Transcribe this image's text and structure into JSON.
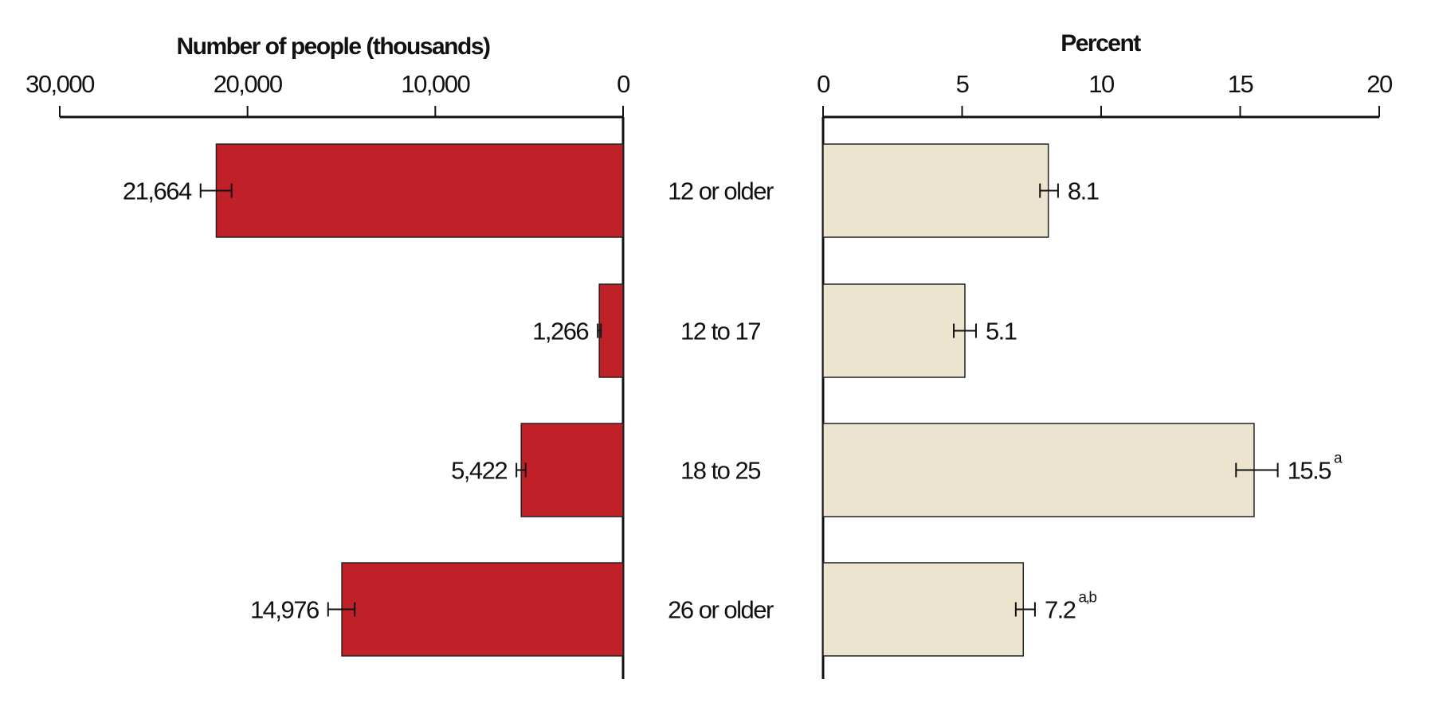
{
  "chart_data": [
    {
      "type": "bar",
      "orientation": "horizontal",
      "direction": "right-to-left",
      "title": "Number of people (thousands)",
      "categories": [
        "12 or older",
        "12 to 17",
        "18 to 25",
        "26 or older"
      ],
      "values": [
        21664,
        1266,
        5422,
        14976
      ],
      "value_labels": [
        "21,664",
        "1,266",
        "5,422",
        "14,976"
      ],
      "error_bars": [
        [
          20850,
          22500
        ],
        [
          1180,
          1350
        ],
        [
          5190,
          5680
        ],
        [
          14290,
          15710
        ]
      ],
      "xlim": [
        0,
        30000
      ],
      "ticks": [
        0,
        10000,
        20000,
        30000
      ],
      "tick_labels": [
        "0",
        "10,000",
        "20,000",
        "30,000"
      ],
      "color": "#c02028",
      "grid": false
    },
    {
      "type": "bar",
      "orientation": "horizontal",
      "title": "Percent",
      "categories": [
        "12 or older",
        "12 to 17",
        "18 to 25",
        "26 or older"
      ],
      "values": [
        8.1,
        5.1,
        15.5,
        7.2
      ],
      "value_labels": [
        "8.1",
        "5.1",
        "15.5",
        "7.2"
      ],
      "superscripts": [
        "",
        "",
        "a",
        "a,b"
      ],
      "error_bars": [
        [
          7.8,
          8.45
        ],
        [
          4.7,
          5.5
        ],
        [
          14.85,
          16.35
        ],
        [
          6.93,
          7.62
        ]
      ],
      "xlim": [
        0,
        20
      ],
      "ticks": [
        0,
        5,
        10,
        15,
        20
      ],
      "tick_labels": [
        "0",
        "5",
        "10",
        "15",
        "20"
      ],
      "color": "#ede4d0",
      "grid": false
    }
  ]
}
